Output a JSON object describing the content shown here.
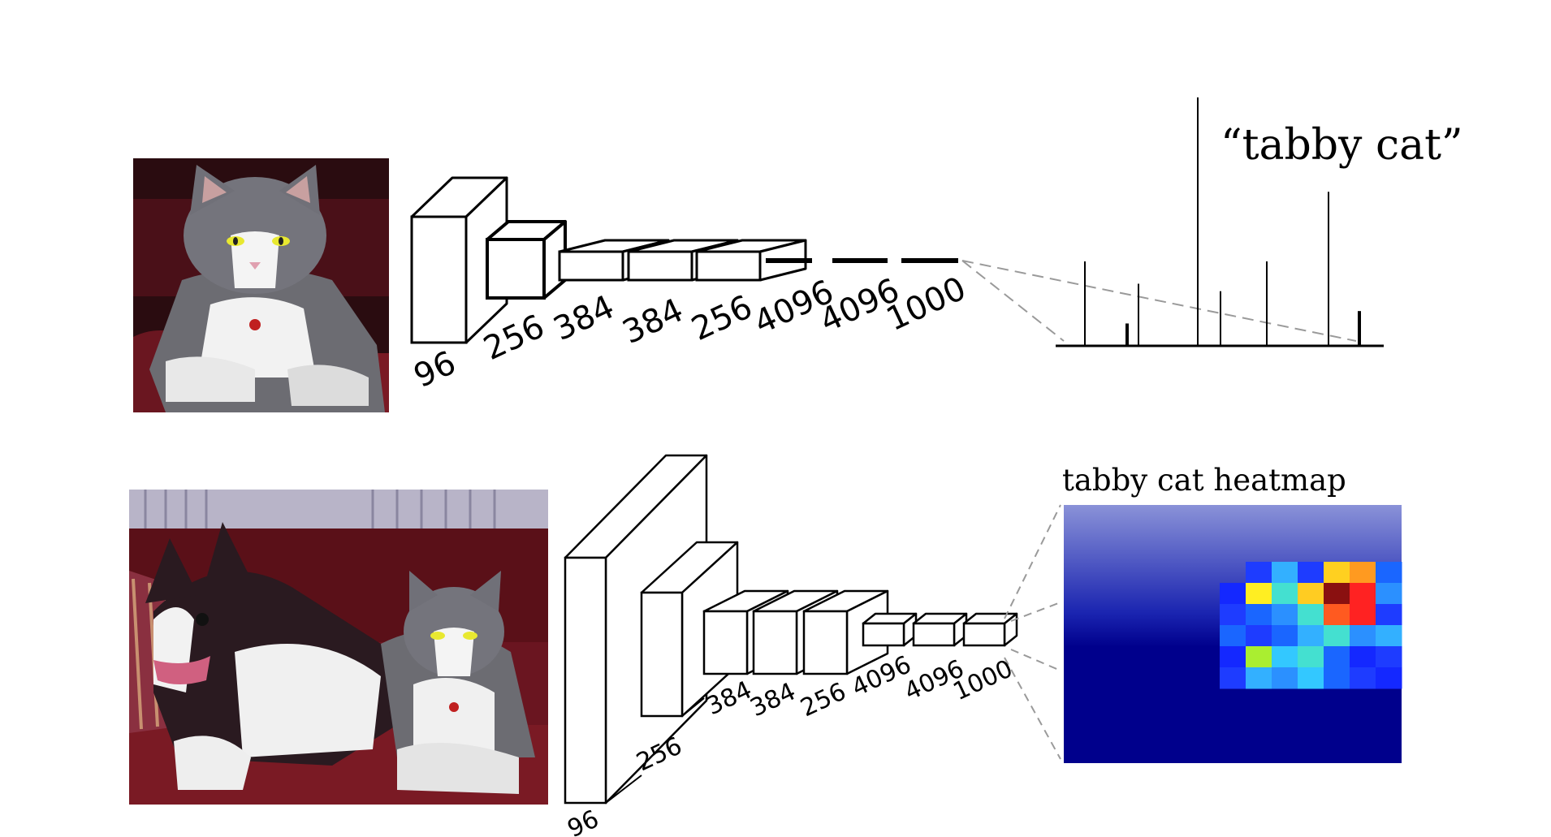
{
  "top_row": {
    "layer_labels": [
      "96",
      "256",
      "384",
      "384",
      "256",
      "4096",
      "4096",
      "1000"
    ],
    "prediction_label": "“tabby cat”",
    "output_bars": [
      0.34,
      0.09,
      0.25,
      1.0,
      0.22,
      0.34,
      0.62,
      0.14
    ]
  },
  "bottom_row": {
    "layer_labels": [
      "96",
      "256",
      "384",
      "384",
      "256",
      "4096",
      "4096",
      "1000"
    ],
    "heatmap_title": "tabby cat heatmap",
    "heatmap_cells": [
      {
        "row": 0,
        "col": 7,
        "color": "#1e3cff"
      },
      {
        "row": 0,
        "col": 8,
        "color": "#33b0ff"
      },
      {
        "row": 0,
        "col": 9,
        "color": "#1e3cff"
      },
      {
        "row": 0,
        "col": 10,
        "color": "#ffd020"
      },
      {
        "row": 0,
        "col": 11,
        "color": "#ff9a20"
      },
      {
        "row": 0,
        "col": 12,
        "color": "#1a66ff"
      },
      {
        "row": 1,
        "col": 6,
        "color": "#1428ff"
      },
      {
        "row": 1,
        "col": 7,
        "color": "#ffee22"
      },
      {
        "row": 1,
        "col": 8,
        "color": "#44e0d0"
      },
      {
        "row": 1,
        "col": 9,
        "color": "#ffcc22"
      },
      {
        "row": 1,
        "col": 10,
        "color": "#8a1010"
      },
      {
        "row": 1,
        "col": 11,
        "color": "#ff2222"
      },
      {
        "row": 1,
        "col": 12,
        "color": "#2b90ff"
      },
      {
        "row": 2,
        "col": 6,
        "color": "#1e3cff"
      },
      {
        "row": 2,
        "col": 7,
        "color": "#1a66ff"
      },
      {
        "row": 2,
        "col": 8,
        "color": "#2b90ff"
      },
      {
        "row": 2,
        "col": 9,
        "color": "#44e0d0"
      },
      {
        "row": 2,
        "col": 10,
        "color": "#ff5a20"
      },
      {
        "row": 2,
        "col": 11,
        "color": "#ff2222"
      },
      {
        "row": 2,
        "col": 12,
        "color": "#1e3cff"
      },
      {
        "row": 3,
        "col": 6,
        "color": "#1a66ff"
      },
      {
        "row": 3,
        "col": 7,
        "color": "#1e3cff"
      },
      {
        "row": 3,
        "col": 8,
        "color": "#1a66ff"
      },
      {
        "row": 3,
        "col": 9,
        "color": "#33b0ff"
      },
      {
        "row": 3,
        "col": 10,
        "color": "#44e0d0"
      },
      {
        "row": 3,
        "col": 11,
        "color": "#2b90ff"
      },
      {
        "row": 3,
        "col": 12,
        "color": "#33b0ff"
      },
      {
        "row": 4,
        "col": 6,
        "color": "#1428ff"
      },
      {
        "row": 4,
        "col": 7,
        "color": "#aaee30"
      },
      {
        "row": 4,
        "col": 8,
        "color": "#33c8ff"
      },
      {
        "row": 4,
        "col": 9,
        "color": "#44e0d0"
      },
      {
        "row": 4,
        "col": 10,
        "color": "#1a66ff"
      },
      {
        "row": 4,
        "col": 11,
        "color": "#1428ff"
      },
      {
        "row": 4,
        "col": 12,
        "color": "#1e3cff"
      },
      {
        "row": 5,
        "col": 6,
        "color": "#1e3cff"
      },
      {
        "row": 5,
        "col": 7,
        "color": "#33b0ff"
      },
      {
        "row": 5,
        "col": 8,
        "color": "#2b90ff"
      },
      {
        "row": 5,
        "col": 9,
        "color": "#33c8ff"
      },
      {
        "row": 5,
        "col": 10,
        "color": "#1a66ff"
      },
      {
        "row": 5,
        "col": 11,
        "color": "#1e3cff"
      },
      {
        "row": 5,
        "col": 12,
        "color": "#1428ff"
      }
    ]
  },
  "colors": {
    "stroke": "#000000",
    "box_fill": "#ffffff",
    "heatmap_base_dark": "#00008c",
    "heatmap_base_light": "#8a92d8",
    "sofa_red": "#7a1a24"
  },
  "icons": [
    "cat-photo",
    "dog-and-cat-photo"
  ]
}
